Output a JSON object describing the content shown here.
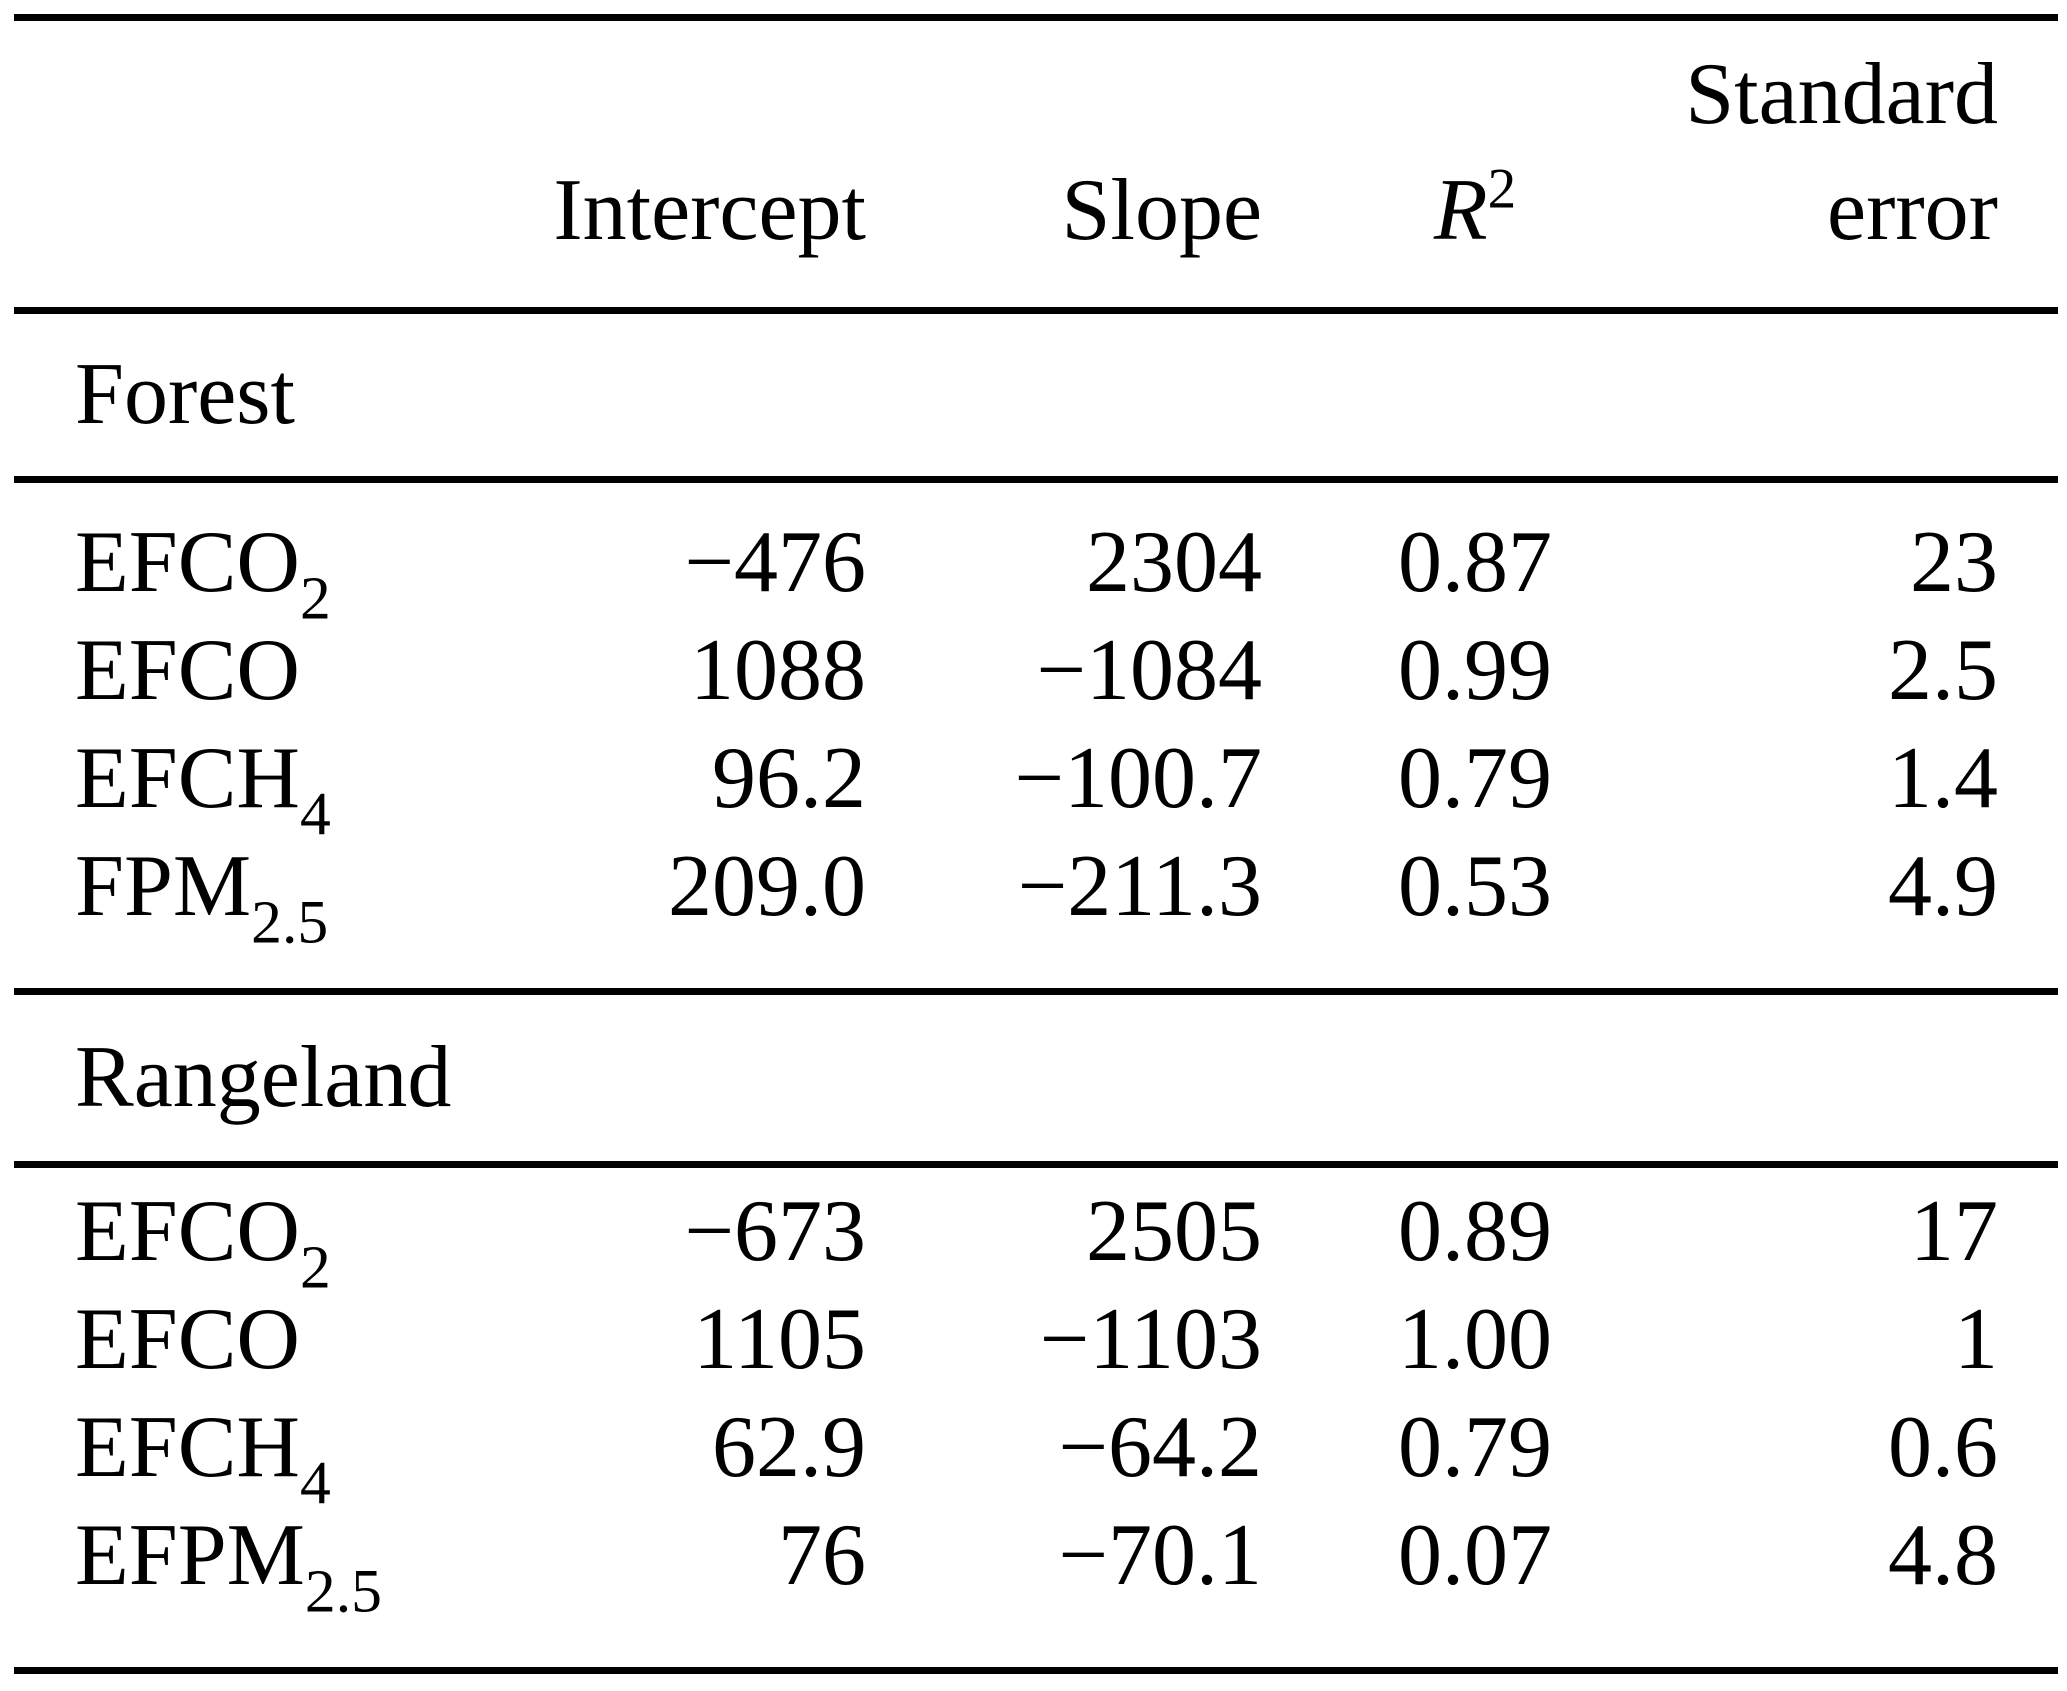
{
  "table": {
    "colors": {
      "text": "#000000",
      "background": "#ffffff",
      "rule": "#000000"
    },
    "header": {
      "intercept": "Intercept",
      "slope": "Slope",
      "r2_base": "R",
      "r2_sup": "2",
      "stderr_line1": "Standard",
      "stderr_line2": "error"
    },
    "sections": [
      {
        "label": "Forest",
        "rows": [
          {
            "name_base": "EFCO",
            "name_sub": "2",
            "intercept": "−476",
            "slope": "2304",
            "r2": "0.87",
            "stderr": "23"
          },
          {
            "name_base": "EFCO",
            "name_sub": "",
            "intercept": "1088",
            "slope": "−1084",
            "r2": "0.99",
            "stderr": "2.5"
          },
          {
            "name_base": "EFCH",
            "name_sub": "4",
            "intercept": "96.2",
            "slope": "−100.7",
            "r2": "0.79",
            "stderr": "1.4"
          },
          {
            "name_base": "FPM",
            "name_sub": "2.5",
            "intercept": "209.0",
            "slope": "−211.3",
            "r2": "0.53",
            "stderr": "4.9"
          }
        ]
      },
      {
        "label": "Rangeland",
        "rows": [
          {
            "name_base": "EFCO",
            "name_sub": "2",
            "intercept": "−673",
            "slope": "2505",
            "r2": "0.89",
            "stderr": "17"
          },
          {
            "name_base": "EFCO",
            "name_sub": "",
            "intercept": "1105",
            "slope": "−1103",
            "r2": "1.00",
            "stderr": "1"
          },
          {
            "name_base": "EFCH",
            "name_sub": "4",
            "intercept": "62.9",
            "slope": "−64.2",
            "r2": "0.79",
            "stderr": "0.6"
          },
          {
            "name_base": "EFPM",
            "name_sub": "2.5",
            "intercept": "76",
            "slope": "−70.1",
            "r2": "0.07",
            "stderr": "4.8"
          }
        ]
      }
    ]
  }
}
